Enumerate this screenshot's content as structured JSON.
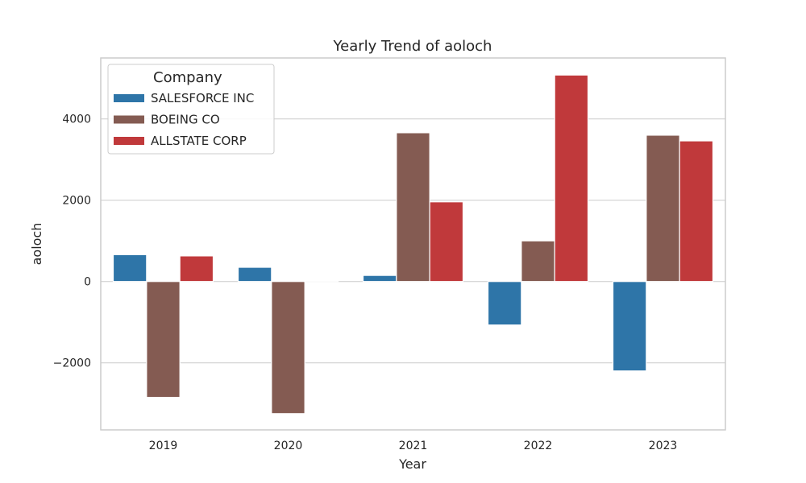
{
  "chart_data": {
    "type": "bar",
    "title": "Yearly Trend of aoloch",
    "xlabel": "Year",
    "ylabel": "aoloch",
    "categories": [
      "2019",
      "2020",
      "2021",
      "2022",
      "2023"
    ],
    "ylim": [
      -3650,
      5500
    ],
    "yticks": [
      -2000,
      0,
      2000,
      4000
    ],
    "ytick_labels": [
      "−2000",
      "0",
      "2000",
      "4000"
    ],
    "grid": true,
    "legend": {
      "title": "Company",
      "position": "top-left"
    },
    "series": [
      {
        "name": "SALESFORCE INC",
        "color": "#2e75a8",
        "values": [
          660,
          350,
          150,
          -1070,
          -2200
        ]
      },
      {
        "name": "BOEING CO",
        "color": "#845b52",
        "values": [
          -2850,
          -3250,
          3660,
          1000,
          3600
        ]
      },
      {
        "name": "ALLSTATE CORP",
        "color": "#c0393b",
        "values": [
          630,
          0,
          1960,
          5080,
          3460
        ]
      }
    ]
  }
}
